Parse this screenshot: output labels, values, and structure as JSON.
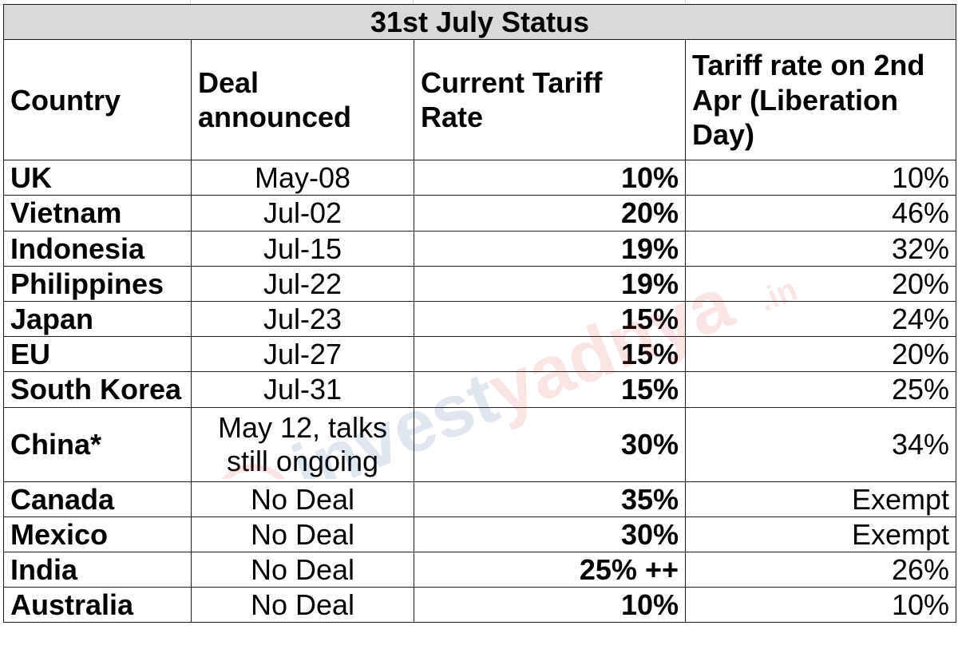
{
  "table": {
    "title": "31st July Status",
    "headers": {
      "country": "Country",
      "deal_line1": "Deal",
      "deal_line2": "announced",
      "current_line1": "Current Tariff",
      "current_line2": "Rate",
      "liberation_line1": "Tariff rate on 2nd",
      "liberation_line2": "Apr (Liberation",
      "liberation_line3": "Day)"
    },
    "rows": [
      {
        "country": "UK",
        "deal": "May-08",
        "current": "10%",
        "liberation": "10%"
      },
      {
        "country": "Vietnam",
        "deal": "Jul-02",
        "current": "20%",
        "liberation": "46%"
      },
      {
        "country": "Indonesia",
        "deal": "Jul-15",
        "current": "19%",
        "liberation": "32%"
      },
      {
        "country": "Philippines",
        "deal": "Jul-22",
        "current": "19%",
        "liberation": "20%"
      },
      {
        "country": "Japan",
        "deal": "Jul-23",
        "current": "15%",
        "liberation": "24%"
      },
      {
        "country": "EU",
        "deal": "Jul-27",
        "current": "15%",
        "liberation": "20%"
      },
      {
        "country": "South Korea",
        "deal": "Jul-31",
        "current": "15%",
        "liberation": "25%"
      },
      {
        "country": "China*",
        "deal_line1": "May 12, talks",
        "deal_line2": "still ongoing",
        "current": "30%",
        "liberation": "34%"
      },
      {
        "country": "Canada",
        "deal": "No Deal",
        "current": "35%",
        "liberation": "Exempt"
      },
      {
        "country": "Mexico",
        "deal": "No Deal",
        "current": "30%",
        "liberation": "Exempt"
      },
      {
        "country": "India",
        "deal": "No Deal",
        "current": "25% ++",
        "liberation": "26%"
      },
      {
        "country": "Australia",
        "deal": "No Deal",
        "current": "10%",
        "liberation": "10%"
      }
    ]
  },
  "watermark": {
    "text": "investyadnya",
    "suffix": ".in",
    "colors": {
      "red": "#e53935",
      "blue": "#1e4f9c"
    }
  }
}
